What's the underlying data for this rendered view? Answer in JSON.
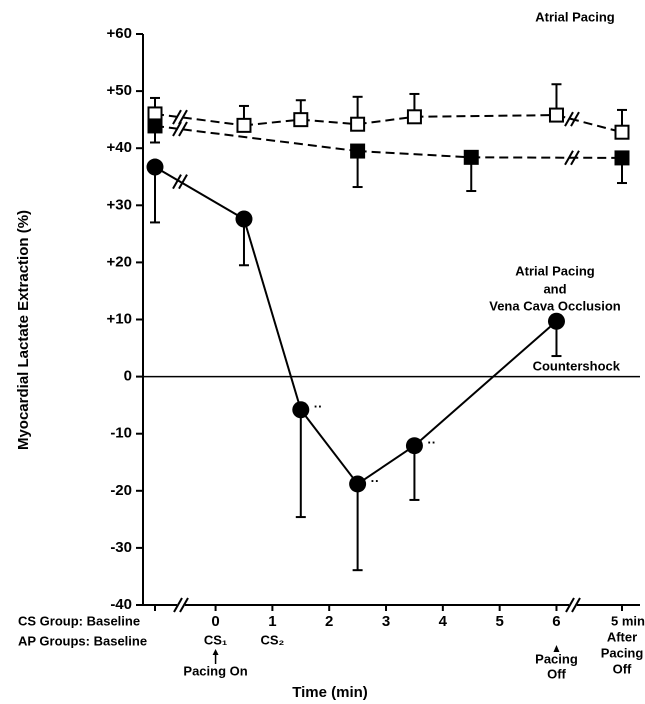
{
  "chart_data": {
    "type": "line",
    "y_label": "Myocardial Lactate Extraction (%)",
    "x_label": "Time (min)",
    "ylim": [
      -40,
      60
    ],
    "yticks": [
      {
        "value": 60,
        "label": "+60"
      },
      {
        "value": 50,
        "label": "+50"
      },
      {
        "value": 40,
        "label": "+40"
      },
      {
        "value": 30,
        "label": "+30"
      },
      {
        "value": 20,
        "label": "+20"
      },
      {
        "value": 10,
        "label": "+10"
      },
      0,
      -10,
      -20,
      -30,
      -40
    ],
    "xlim": [
      -0.45,
      6.15
    ],
    "xticks": [
      0,
      1,
      2,
      3,
      4,
      5,
      6
    ],
    "zero_line": true,
    "zero_line_label": "Countershock",
    "baseline_labels": [
      "CS Group: Baseline",
      "AP Groups: Baseline"
    ],
    "after_label": [
      "5 min",
      "After",
      "Pacing",
      "Off"
    ],
    "tick_notes": [
      {
        "x": 0,
        "lines": [
          "CS₁",
          "Pacing On"
        ],
        "arrow": "up"
      },
      {
        "x": 1,
        "lines": [
          "CS₂"
        ]
      },
      {
        "x": 6,
        "lines": [
          "Pacing",
          "Off"
        ],
        "arrow": "up-above"
      }
    ],
    "series": [
      {
        "name": "Atrial Pacing",
        "marker": "open-square",
        "color": "#000000",
        "dash": true,
        "error_direction": "up",
        "baseline": 46,
        "baseline_error": 2.8,
        "x": [
          0.5,
          1.5,
          2.5,
          3.5,
          6
        ],
        "values": [
          44,
          45,
          44.2,
          45.5,
          45.8
        ],
        "errors": [
          3.4,
          3.4,
          4.8,
          4,
          5.4
        ],
        "after": 42.8,
        "after_error": 3.9
      },
      {
        "name_lines": [
          "Atrial Pacing",
          "and",
          "Vena Cava Occlusion"
        ],
        "marker": "filled-square",
        "color": "#000000",
        "dash": true,
        "error_direction": "down",
        "baseline": 43.9,
        "baseline_error": 2.9,
        "x": [
          2.5,
          4.5
        ],
        "values": [
          39.5,
          38.4
        ],
        "errors": [
          6.3,
          5.9
        ],
        "after": 38.3,
        "after_error": 4.4
      },
      {
        "marker": "circle",
        "color": "#000000",
        "dash": false,
        "error_direction": "down",
        "baseline": 36.7,
        "baseline_error": 9.7,
        "x": [
          0.5,
          1.5,
          2.5,
          3.5,
          6
        ],
        "values": [
          27.6,
          -5.8,
          -18.8,
          -12.1,
          9.7
        ],
        "errors": [
          8.1,
          18.8,
          15.1,
          9.5,
          6.1
        ],
        "value_notes": [
          null,
          "··",
          "··",
          "··",
          null
        ]
      }
    ]
  }
}
